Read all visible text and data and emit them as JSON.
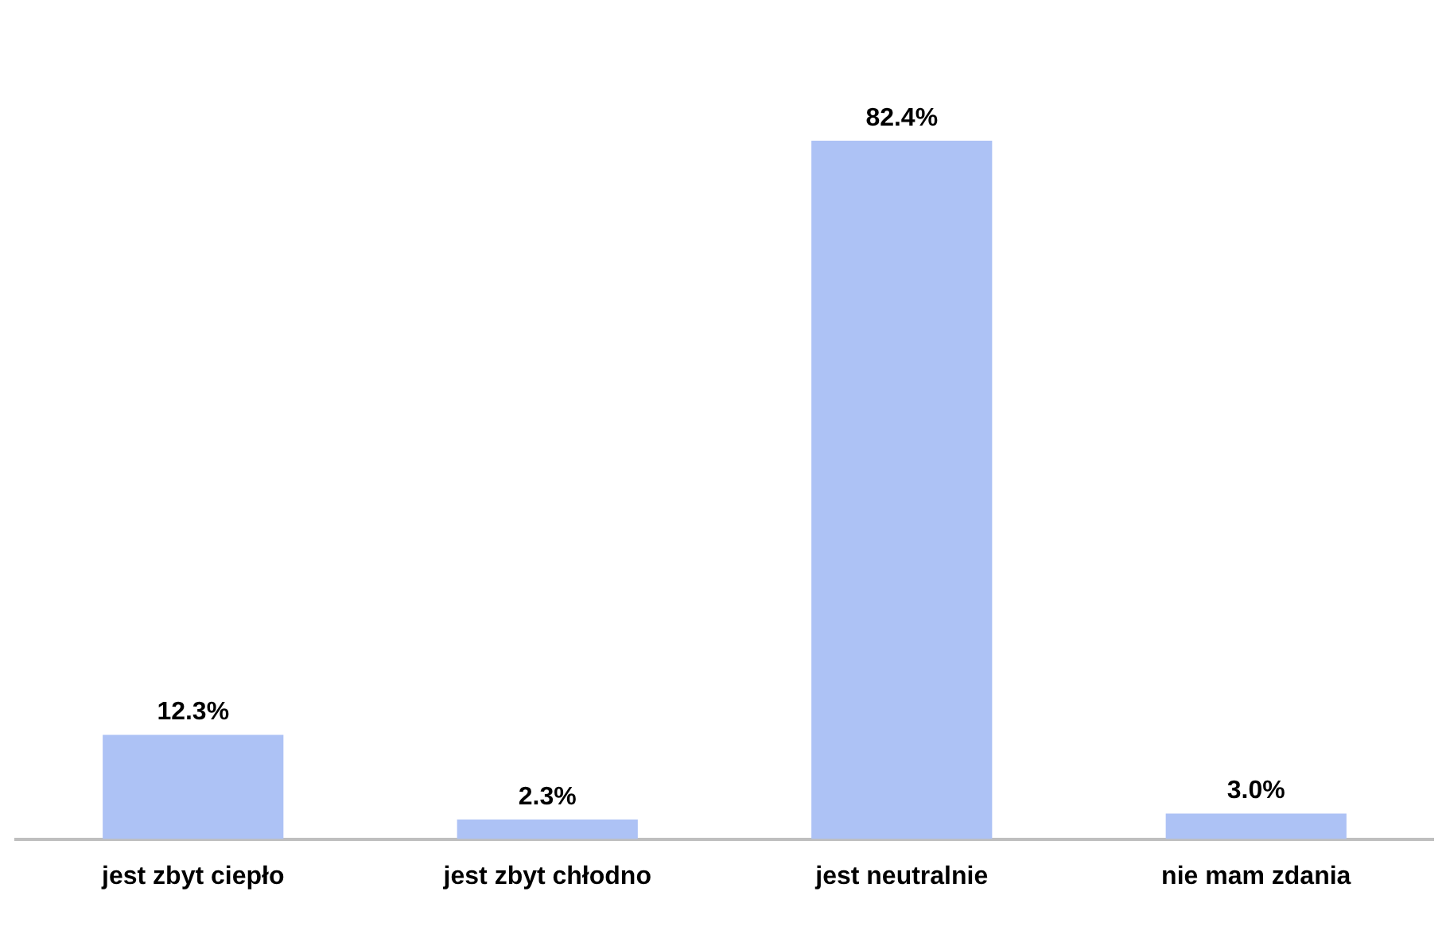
{
  "chart_data": {
    "type": "bar",
    "categories": [
      "jest zbyt ciepło",
      "jest zbyt chłodno",
      "jest neutralnie",
      "nie mam zdania"
    ],
    "values": [
      12.3,
      2.3,
      82.4,
      3.0
    ],
    "value_labels": [
      "12.3%",
      "2.3%",
      "82.4%",
      "3.0%"
    ],
    "color": "#adc2f5",
    "grid": false,
    "legend": false
  }
}
